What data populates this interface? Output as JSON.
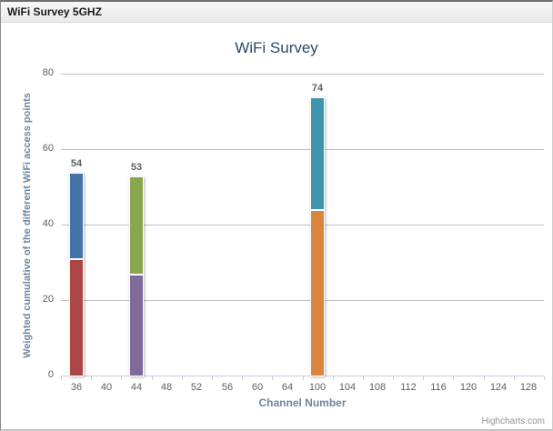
{
  "window": {
    "title": "WiFi Survey 5GHZ"
  },
  "credits": "Highcharts.com",
  "theme": {
    "title_color": "#274B6D",
    "axis_title_color": "#6D869F",
    "tick_label_color": "#606060",
    "stack_label_color": "#606060",
    "grid_color": "#C0C0C0",
    "axis_line_color": "#C0D0E0"
  },
  "chart_data": {
    "type": "bar",
    "stacked": true,
    "title": "WiFi Survey",
    "xlabel": "Channel Number",
    "ylabel": "Weighted cumulative of the different WiFi access points",
    "categories": [
      "36",
      "40",
      "44",
      "48",
      "52",
      "56",
      "60",
      "64",
      "100",
      "104",
      "108",
      "112",
      "116",
      "120",
      "124",
      "128"
    ],
    "ylim": [
      0,
      80
    ],
    "yticks": [
      0,
      20,
      40,
      60,
      80
    ],
    "grid": true,
    "legend": "none",
    "bars": [
      {
        "category": "36",
        "total": 54,
        "total_label": "54",
        "segments": [
          {
            "value": 31,
            "color": "#AA4643"
          },
          {
            "value": 23,
            "color": "#4572A7"
          }
        ]
      },
      {
        "category": "44",
        "total": 53,
        "total_label": "53",
        "segments": [
          {
            "value": 27,
            "color": "#80699B"
          },
          {
            "value": 26,
            "color": "#89A54E"
          }
        ]
      },
      {
        "category": "100",
        "total": 74,
        "total_label": "74",
        "segments": [
          {
            "value": 44,
            "color": "#DB843D"
          },
          {
            "value": 30,
            "color": "#3D96AE"
          }
        ]
      }
    ]
  }
}
